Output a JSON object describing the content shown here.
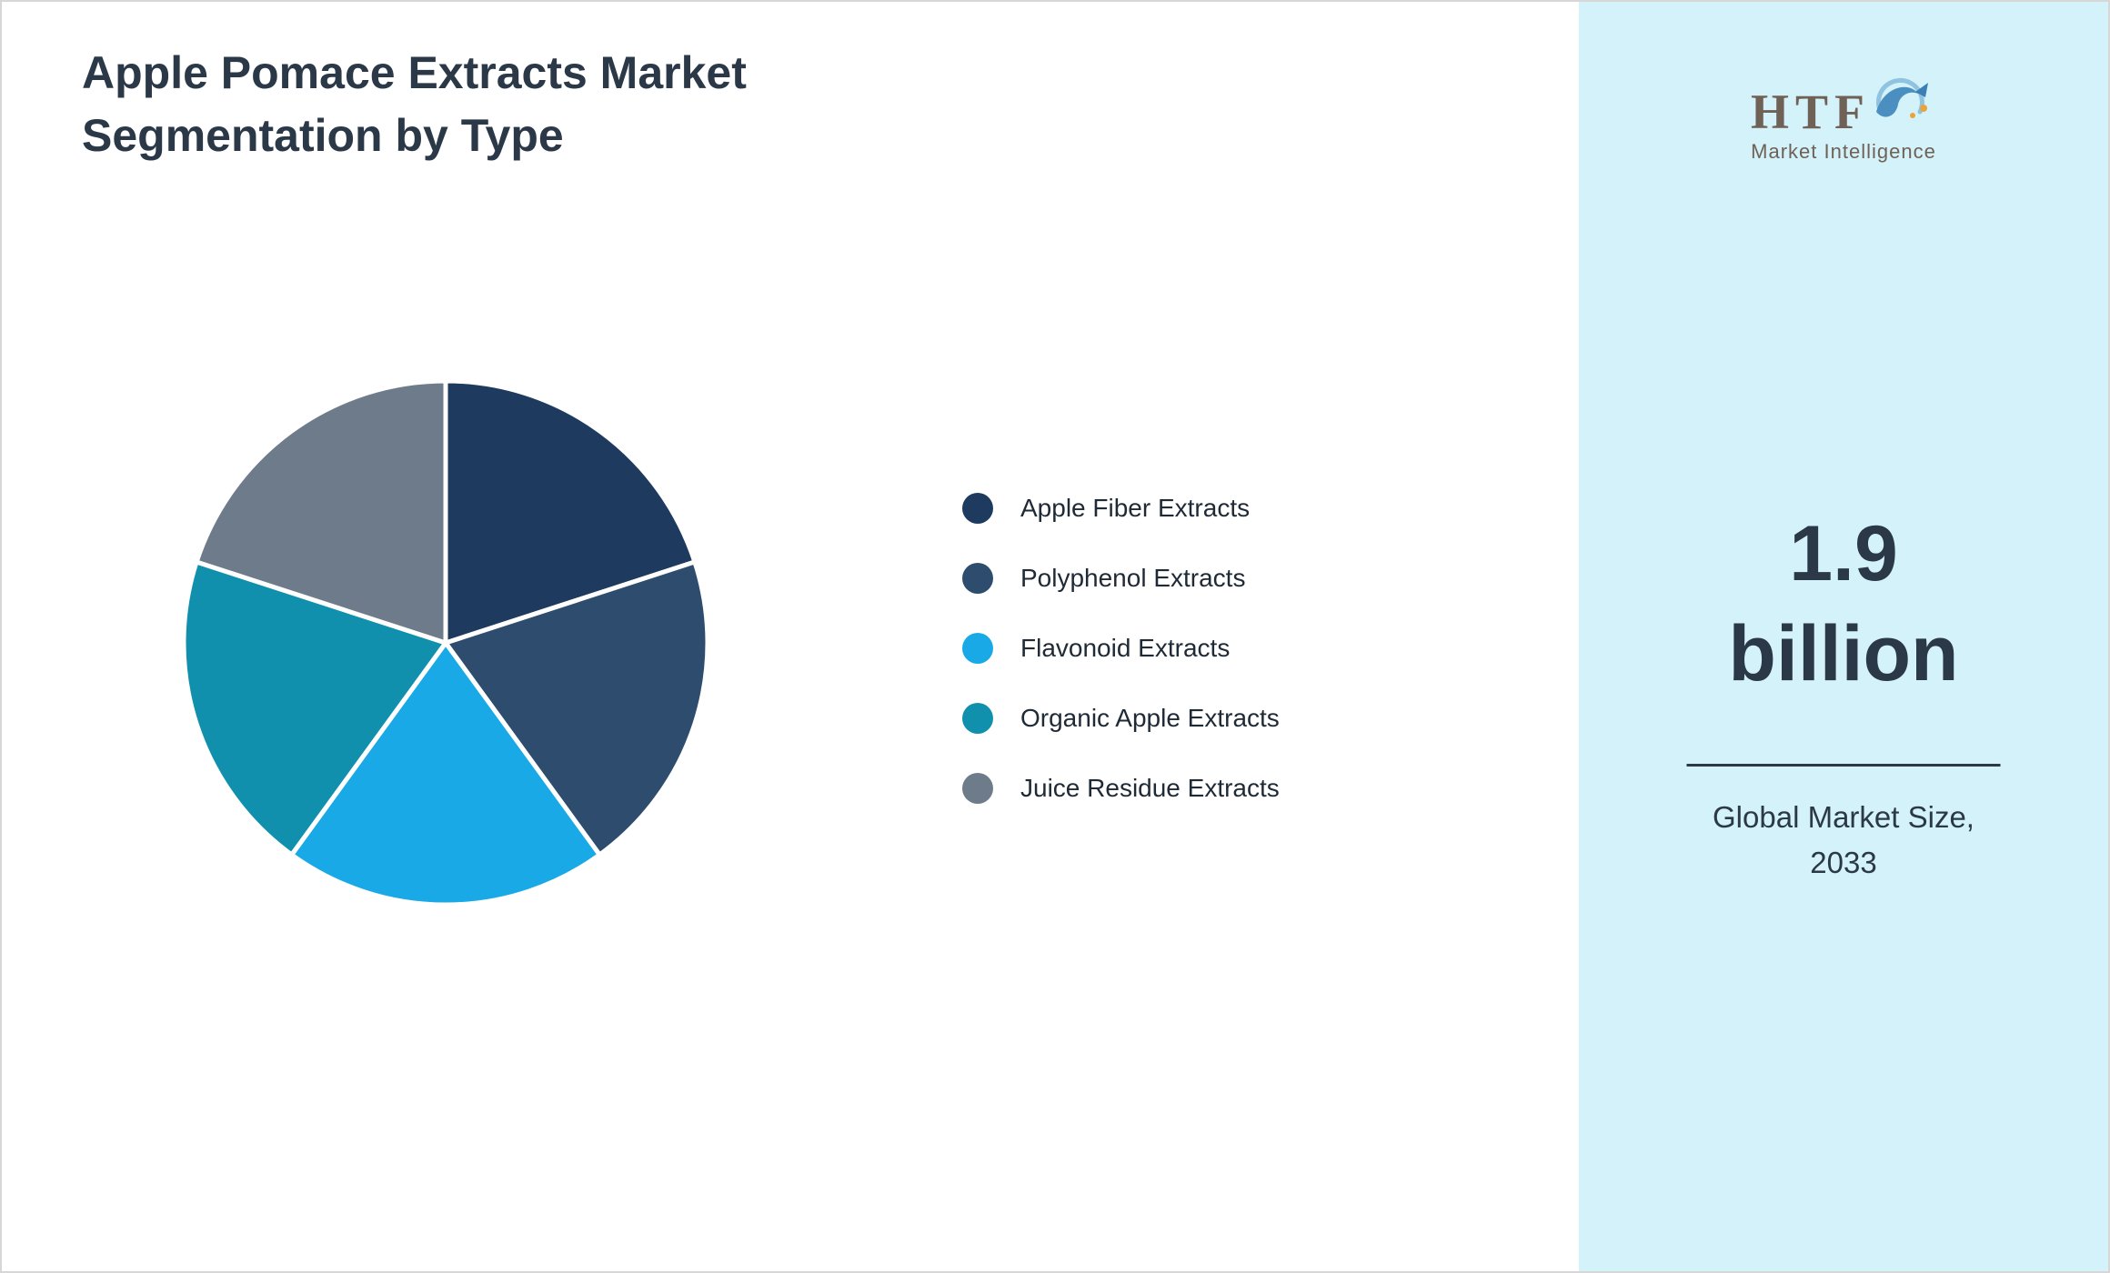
{
  "title": "Apple Pomace Extracts Market Segmentation by Type",
  "chart_data": {
    "type": "pie",
    "labels": [
      "Apple Fiber Extracts",
      "Polyphenol Extracts",
      "Flavonoid Extracts",
      "Organic Apple Extracts",
      "Juice Residue Extracts"
    ],
    "values": [
      20,
      20,
      20,
      20,
      20
    ],
    "unit": "percent",
    "colors": [
      "#1e3a5f",
      "#2e4d6e",
      "#18a9e6",
      "#1190ad",
      "#6e7b8b"
    ],
    "start_angle_deg": -90,
    "direction": "clockwise",
    "legend_position": "right",
    "title": "Apple Pomace Extracts Market Segmentation by Type"
  },
  "sidebar": {
    "background": "#d3f2fa",
    "logo_text": "HTF",
    "logo_subtext": "Market Intelligence",
    "value_line1": "1.9",
    "value_line2": "billion",
    "label_line1": "Global Market Size,",
    "label_line2": "2033"
  }
}
